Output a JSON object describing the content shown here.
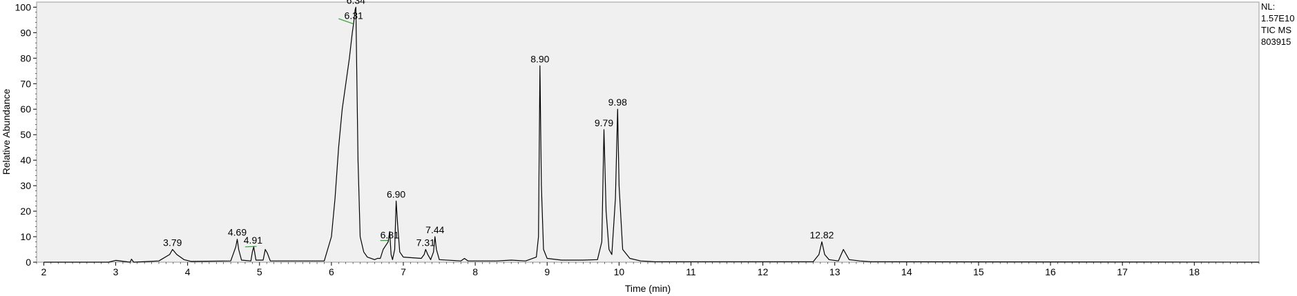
{
  "chart_data": {
    "type": "line",
    "title": "",
    "xlabel": "Time (min)",
    "ylabel": "Relative Abundance",
    "xlim": [
      1.9,
      18.9
    ],
    "ylim": [
      0,
      102
    ],
    "x_ticks": [
      "2",
      "3",
      "4",
      "5",
      "6",
      "7",
      "8",
      "9",
      "10",
      "11",
      "12",
      "13",
      "14",
      "15",
      "16",
      "17",
      "18"
    ],
    "y_ticks": [
      "0",
      "10",
      "20",
      "30",
      "40",
      "50",
      "60",
      "70",
      "80",
      "90",
      "100"
    ],
    "grid": false,
    "plot_background": "#f0f0f0",
    "line_color": "#000000",
    "marker_color": "#2ca02c",
    "series": [
      {
        "x": [
          2.0,
          2.9,
          3.0,
          3.2,
          3.22,
          3.25,
          3.6,
          3.75,
          3.79,
          3.85,
          3.95,
          4.05,
          4.6,
          4.67,
          4.69,
          4.71,
          4.75,
          4.88,
          4.9,
          4.92,
          4.95,
          5.05,
          5.08,
          5.11,
          5.15,
          5.9,
          6.0,
          6.05,
          6.1,
          6.15,
          6.2,
          6.25,
          6.29,
          6.31,
          6.33,
          6.34,
          6.35,
          6.37,
          6.4,
          6.45,
          6.5,
          6.6,
          6.64,
          6.68,
          6.72,
          6.79,
          6.81,
          6.83,
          6.85,
          6.88,
          6.9,
          6.92,
          6.95,
          7.0,
          7.25,
          7.29,
          7.31,
          7.34,
          7.38,
          7.42,
          7.44,
          7.46,
          7.5,
          7.8,
          7.85,
          7.9,
          8.3,
          8.5,
          8.7,
          8.85,
          8.88,
          8.9,
          8.92,
          8.95,
          9.0,
          9.2,
          9.5,
          9.7,
          9.76,
          9.79,
          9.82,
          9.86,
          9.9,
          9.95,
          9.98,
          10.0,
          10.05,
          10.15,
          10.3,
          10.5,
          12.7,
          12.78,
          12.82,
          12.86,
          12.92,
          13.05,
          13.12,
          13.2,
          13.35,
          13.5,
          18.9
        ],
        "y": [
          0,
          0,
          0.7,
          0,
          1.2,
          0,
          0.5,
          3,
          5,
          3,
          1,
          0.3,
          0.5,
          6,
          9,
          5,
          0.8,
          0.5,
          4,
          6,
          0.8,
          0.8,
          5,
          3.5,
          0.5,
          0.5,
          10,
          25,
          45,
          60,
          70,
          80,
          90,
          94,
          99,
          100,
          80,
          40,
          10,
          4,
          2,
          1,
          1.5,
          1.5,
          5,
          8,
          12,
          3,
          1,
          5,
          24,
          15,
          4,
          2,
          1.5,
          3,
          5,
          3,
          1,
          4,
          10,
          5,
          1,
          0.5,
          1.5,
          0.5,
          0.5,
          0.8,
          0.5,
          2,
          10,
          77,
          30,
          5,
          1.5,
          0.8,
          0.8,
          1,
          8,
          52,
          20,
          5,
          3,
          25,
          60,
          30,
          5,
          1.5,
          0.5,
          0.2,
          0.2,
          3,
          8,
          3,
          1,
          0.5,
          5,
          1,
          0.5,
          0.2,
          0
        ]
      }
    ],
    "peak_labels": [
      {
        "x": 3.79,
        "y": 5,
        "text": "3.79"
      },
      {
        "x": 4.69,
        "y": 9,
        "text": "4.69"
      },
      {
        "x": 4.91,
        "y": 6,
        "text": "4.91"
      },
      {
        "x": 6.31,
        "y": 94,
        "text": "6.31"
      },
      {
        "x": 6.34,
        "y": 100,
        "text": "6.34"
      },
      {
        "x": 6.81,
        "y": 8,
        "text": "6.81"
      },
      {
        "x": 6.9,
        "y": 24,
        "text": "6.90"
      },
      {
        "x": 7.31,
        "y": 5,
        "text": "7.31"
      },
      {
        "x": 7.44,
        "y": 10,
        "text": "7.44"
      },
      {
        "x": 8.9,
        "y": 77,
        "text": "8.90"
      },
      {
        "x": 9.79,
        "y": 52,
        "text": "9.79"
      },
      {
        "x": 9.98,
        "y": 60,
        "text": "9.98"
      },
      {
        "x": 12.82,
        "y": 8,
        "text": "12.82"
      }
    ],
    "integration_marks": [
      {
        "x1": 6.1,
        "y1": 95.5,
        "x2": 6.3,
        "y2": 93.5
      },
      {
        "x1": 4.8,
        "y1": 6,
        "x2": 4.96,
        "y2": 6.2
      },
      {
        "x1": 6.68,
        "y1": 8.5,
        "x2": 6.8,
        "y2": 8.5
      }
    ]
  },
  "info": {
    "nl_label": "NL:",
    "nl_value": "1.57E10",
    "scan_filter": "TIC  MS",
    "sample": "803915"
  }
}
